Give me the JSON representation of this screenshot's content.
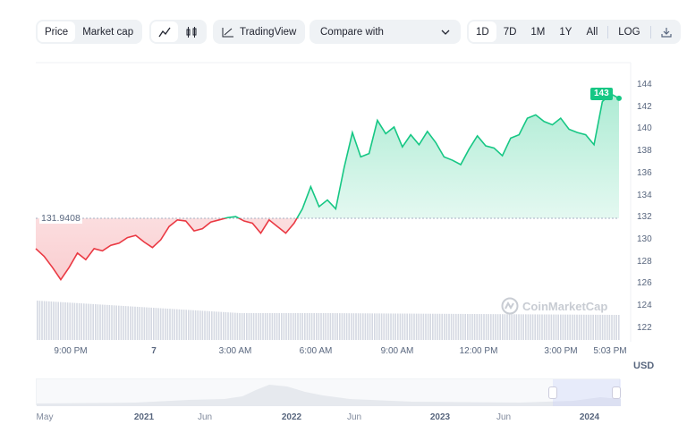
{
  "toolbar": {
    "price": "Price",
    "market_cap": "Market cap",
    "line_icon": "line-chart-icon",
    "candle_icon": "candlestick-icon",
    "tradingview": "TradingView",
    "compare": "Compare with",
    "ranges": [
      "1D",
      "7D",
      "1M",
      "1Y",
      "All"
    ],
    "log": "LOG",
    "download_icon": "download-icon"
  },
  "colors": {
    "up": "#16c784",
    "down": "#ea3943",
    "accent": "#16c784"
  },
  "chart_data": {
    "type": "line",
    "title": "",
    "ylabel": "USD",
    "ylim": [
      121,
      145
    ],
    "y_ticks": [
      "122",
      "124",
      "126",
      "128",
      "130",
      "132",
      "134",
      "136",
      "138",
      "140",
      "142",
      "144"
    ],
    "x_ticks": [
      "9:00 PM",
      "7",
      "3:00 AM",
      "6:00 AM",
      "9:00 AM",
      "12:00 PM",
      "3:00 PM",
      "5:03 PM"
    ],
    "reference_value": "131.9408",
    "current_value": "143",
    "values": [
      129.2,
      128.5,
      127.5,
      126.4,
      127.5,
      128.8,
      128.2,
      129.2,
      129,
      129.5,
      129.7,
      130.2,
      130.4,
      129.8,
      129.3,
      130,
      131.2,
      131.8,
      131.7,
      130.8,
      131,
      131.6,
      131.8,
      132,
      132.1,
      131.7,
      131.5,
      130.6,
      131.8,
      131.2,
      130.6,
      131.5,
      132.8,
      134.8,
      133,
      133.6,
      132.8,
      136.5,
      139.7,
      137.5,
      137.8,
      140.8,
      139.6,
      140.2,
      138.4,
      139.5,
      138.6,
      139.8,
      138.8,
      137.5,
      137.2,
      136.8,
      138.2,
      139.4,
      138.5,
      138.3,
      137.6,
      139.2,
      139.5,
      141,
      141.3,
      140.7,
      140.4,
      141,
      140,
      139.7,
      139.5,
      138.6,
      142.5,
      143.2,
      142.8
    ]
  },
  "navigator": {
    "labels": [
      "May",
      "2021",
      "Jun",
      "2022",
      "Jun",
      "2023",
      "Jun",
      "2024"
    ]
  },
  "watermark": "CoinMarketCap"
}
